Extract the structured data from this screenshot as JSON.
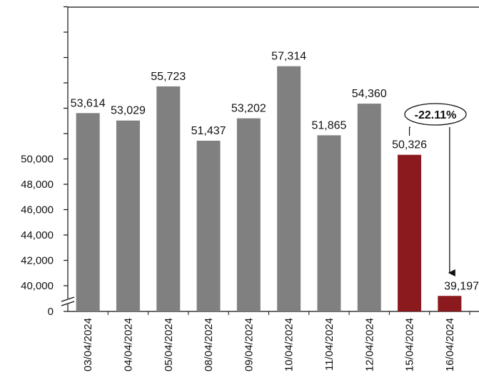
{
  "chart_data": {
    "type": "bar",
    "categories": [
      "03/04/2024",
      "04/04/2024",
      "05/04/2024",
      "08/04/2024",
      "09/04/2024",
      "10/04/2024",
      "11/04/2024",
      "12/04/2024",
      "15/04/2024",
      "16/04/2024"
    ],
    "values": [
      53614,
      53029,
      55723,
      51437,
      53202,
      57314,
      51865,
      54360,
      50326,
      39197
    ],
    "data_labels": [
      "53,614",
      "53,029",
      "55,723",
      "51,437",
      "53,202",
      "57,314",
      "51,865",
      "54,360",
      "50,326",
      "39,197"
    ],
    "highlighted_indices": [
      8,
      9
    ],
    "bar_color": "#808080",
    "highlight_color": "#8b1a1f",
    "y_axis": {
      "broken": true,
      "break_below": 39000,
      "tick_values": [
        0,
        40000,
        42000,
        44000,
        46000,
        48000,
        50000
      ],
      "tick_labels": [
        "0",
        "40,000",
        "42,000",
        "44,000",
        "46,000",
        "48,000",
        "50,000"
      ],
      "unlabeled_tick_values": [
        52000,
        54000,
        56000,
        58000,
        60000,
        62000
      ],
      "max": 62000
    },
    "callout": {
      "text": "-22.11%",
      "from_index": 8,
      "to_index": 9
    },
    "title": "",
    "xlabel": "",
    "ylabel": "",
    "grid": false,
    "legend": "none"
  }
}
